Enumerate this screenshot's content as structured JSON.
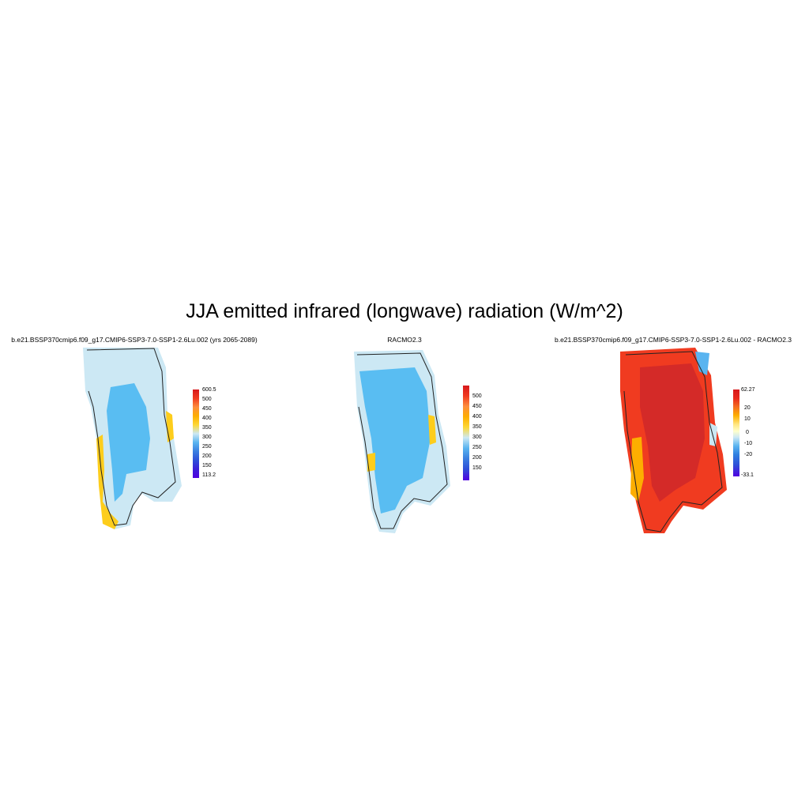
{
  "title": "JJA emitted infrared (longwave) radiation (W/m^2)",
  "panels": [
    {
      "id": "model",
      "title": "b.e21.BSSP370cmip6.f09_g17.CMIP6-SSP3-7.0-SSP1-2.6Lu.002 (yrs 2065-2089)",
      "colorbar": {
        "labels": [
          "600.5",
          "500",
          "450",
          "400",
          "350",
          "300",
          "250",
          "200",
          "150",
          "113.2"
        ],
        "colors": [
          "#d7191c",
          "#f03b20",
          "#fd8d3c",
          "#fdae00",
          "#fdd835",
          "#cce8f4",
          "#59b4f0",
          "#3a7fe0",
          "#2f4fd8",
          "#3b1fd8",
          "#5000e0"
        ]
      }
    },
    {
      "id": "racmo",
      "title": "RACMO2.3",
      "colorbar": {
        "labels": [
          "500",
          "450",
          "400",
          "350",
          "300",
          "250",
          "200",
          "150"
        ],
        "colors": [
          "#d7191c",
          "#f03b20",
          "#fd8d3c",
          "#fdae00",
          "#fdd835",
          "#cce8f4",
          "#59b4f0",
          "#3a7fe0",
          "#2f4fd8",
          "#5000e0"
        ]
      }
    },
    {
      "id": "diff",
      "title": "b.e21.BSSP370cmip6.f09_g17.CMIP6-SSP3-7.0-SSP1-2.6Lu.002 - RACMO2.3",
      "colorbar": {
        "labels": [
          "62.27",
          "20",
          "10",
          "0",
          "-10",
          "-20",
          "-33.1"
        ],
        "colors": [
          "#d7191c",
          "#e8291c",
          "#f46d20",
          "#fdae00",
          "#ffe680",
          "#ffffcc",
          "#cce8f4",
          "#59b4f0",
          "#2f7fe0",
          "#2f4fd8",
          "#5000e0"
        ]
      }
    }
  ],
  "colors": {
    "ice_interior": "#59bdf2",
    "ice_margin": "#cce8f4",
    "warm_margin": "#fdcd1c",
    "diff_core": "#d42a28",
    "diff_edge": "#f03b20"
  }
}
